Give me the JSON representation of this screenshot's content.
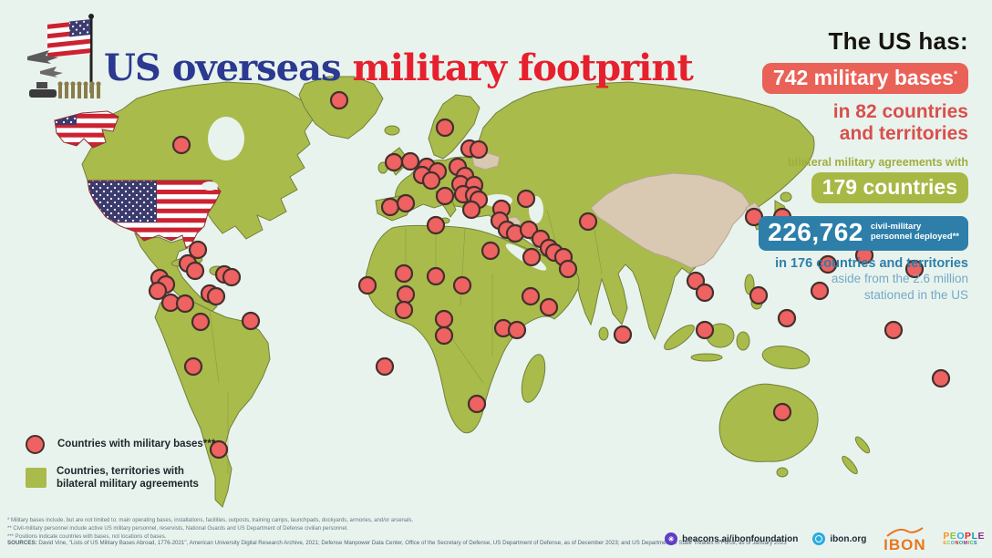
{
  "title": {
    "part1": "US overseas ",
    "part2": "military footprint"
  },
  "stats": {
    "heading": "The US has:",
    "bases_pill": "742 military bases",
    "bases_note": "*",
    "bases_sub1": "in 82 countries",
    "bases_sub2": "and territories",
    "agreements_label": "bilateral military agreements with",
    "agreements_pill": "179 countries",
    "personnel_number": "226,762",
    "personnel_label_line1": "civil-military",
    "personnel_label_line2": "personnel deployed**",
    "personnel_sub1": "in 176 countries and territories",
    "personnel_sub2": "aside from the 2.6 million",
    "personnel_sub3": "stationed in the US"
  },
  "legend": {
    "bases": "Countries with military bases***",
    "agreements_line1": "Countries, territories with",
    "agreements_line2": "bilateral military agreements"
  },
  "footnotes": [
    "* Military bases include, but are not limited to: main operating bases, installations, facilities, outposts, training camps, launchpads, dockyards, armories, and/or arsenals.",
    "** Civil-military personnel include active US military personnel, reservists, National Guards and US Department of Defense civilian personnel.",
    "*** Positions indicate countries with bases, not locations of bases."
  ],
  "sources_label": "SOURCES:",
  "sources_text": "David Vine, \"Lists of US Military Bases Abroad, 1776-2021\", American University Digital Research Archive, 2021;  Defense Manpower Data Center, Office of the Secretary of Defense, US Department of Defense, as of December 2023; and US Department of State Treaties in Force, as of January 2023",
  "footer": {
    "beacons": "beacons.ai/ibonfoundation",
    "ibon_site": "ibon.org",
    "ibon_logo": "IBON",
    "people_line1": "PEOPLE",
    "people_line2": "ECONOMICS"
  },
  "colors": {
    "accent_red": "#e96157",
    "accent_olive": "#a8b845",
    "accent_blue": "#2d7fa9",
    "title_blue": "#2b3a90",
    "title_red": "#e6202d",
    "land_green": "#a9bb4b",
    "land_tan": "#d9c8b2",
    "dot_red": "#ee6262",
    "letter_palette": [
      "#f7941d",
      "#8bc53f",
      "#29abe2",
      "#ec1c24",
      "#00a79d",
      "#92278f",
      "#f15a29",
      "#39b54a",
      "#1b75bb",
      "#d7df23"
    ]
  },
  "map": {
    "dot_radius": 9,
    "dots": [
      [
        199,
        159
      ],
      [
        372,
        110
      ],
      [
        217,
        274
      ],
      [
        206,
        289
      ],
      [
        214,
        297
      ],
      [
        246,
        301
      ],
      [
        254,
        304
      ],
      [
        175,
        305
      ],
      [
        182,
        312
      ],
      [
        173,
        319
      ],
      [
        187,
        332
      ],
      [
        203,
        333
      ],
      [
        230,
        322
      ],
      [
        237,
        325
      ],
      [
        275,
        352
      ],
      [
        220,
        353
      ],
      [
        212,
        402
      ],
      [
        240,
        493
      ],
      [
        488,
        140
      ],
      [
        432,
        178
      ],
      [
        450,
        177
      ],
      [
        515,
        163
      ],
      [
        525,
        164
      ],
      [
        468,
        183
      ],
      [
        480,
        188
      ],
      [
        463,
        192
      ],
      [
        473,
        198
      ],
      [
        502,
        183
      ],
      [
        510,
        193
      ],
      [
        505,
        202
      ],
      [
        520,
        203
      ],
      [
        508,
        213
      ],
      [
        520,
        214
      ],
      [
        525,
        219
      ],
      [
        488,
        215
      ],
      [
        428,
        227
      ],
      [
        445,
        223
      ],
      [
        517,
        230
      ],
      [
        550,
        229
      ],
      [
        577,
        218
      ],
      [
        548,
        242
      ],
      [
        556,
        252
      ],
      [
        565,
        256
      ],
      [
        580,
        252
      ],
      [
        593,
        262
      ],
      [
        602,
        272
      ],
      [
        608,
        277
      ],
      [
        618,
        282
      ],
      [
        623,
        295
      ],
      [
        583,
        282
      ],
      [
        538,
        275
      ],
      [
        645,
        243
      ],
      [
        478,
        247
      ],
      [
        443,
        300
      ],
      [
        403,
        313
      ],
      [
        478,
        303
      ],
      [
        507,
        313
      ],
      [
        445,
        323
      ],
      [
        443,
        340
      ],
      [
        487,
        350
      ],
      [
        487,
        368
      ],
      [
        552,
        360
      ],
      [
        567,
        362
      ],
      [
        582,
        325
      ],
      [
        602,
        337
      ],
      [
        523,
        443
      ],
      [
        422,
        402
      ],
      [
        683,
        367
      ],
      [
        763,
        308
      ],
      [
        773,
        321
      ],
      [
        773,
        362
      ],
      [
        832,
        324
      ],
      [
        827,
        238
      ],
      [
        858,
        238
      ],
      [
        908,
        290
      ],
      [
        948,
        280
      ],
      [
        1003,
        295
      ],
      [
        899,
        319
      ],
      [
        863,
        349
      ],
      [
        980,
        362
      ],
      [
        1032,
        415
      ],
      [
        858,
        452
      ]
    ]
  }
}
